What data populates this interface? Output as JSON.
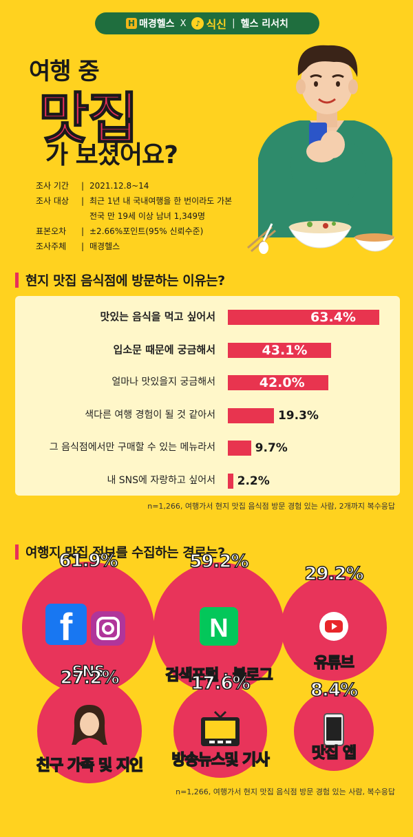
{
  "brand": {
    "maeil": "매경헬스",
    "x": "X",
    "sikshin": "식신",
    "divider": "|",
    "research": "헬스 리서치"
  },
  "hero": {
    "line1": "여행 중",
    "line2": "맛집",
    "line3": "가 보셨어요?"
  },
  "survey": [
    {
      "key": "조사 기간",
      "value": "2021.12.8~14"
    },
    {
      "key": "조사 대상",
      "value": "최근 1년 내 국내여행을 한 번이라도 가본",
      "value2": "전국 만 19세 이상 남녀 1,349명"
    },
    {
      "key": "표본오차",
      "value": "±2.66%포인트(95% 신뢰수준)"
    },
    {
      "key": "조사주체",
      "value": "매경헬스"
    }
  ],
  "section1": {
    "title": "현지 맛집 음식점에 방문하는 이유는?"
  },
  "section2": {
    "title": "여행지 맛집 정보를 수집하는 경로는?"
  },
  "chart_data": [
    {
      "type": "bar",
      "orientation": "horizontal",
      "categories": [
        "맛있는 음식을 먹고 싶어서",
        "입소문 때문에 궁금해서",
        "얼마나 맛있을지 궁금해서",
        "색다른 여행 경험이 될 것 같아서",
        "그 음식점에서만 구매할 수 있는 메뉴라서",
        "내 SNS에 자랑하고 싶어서"
      ],
      "values": [
        63.4,
        43.1,
        42.0,
        19.3,
        9.7,
        2.2
      ],
      "labels": [
        "63.4%",
        "43.1%",
        "42.0%",
        "19.3%",
        "9.7%",
        "2.2%"
      ],
      "note": "n=1,266, 여행가서 현지 맛집 음식점 방문 경험 있는 사람, 2개까지 복수응답",
      "color": "#E8344F"
    },
    {
      "type": "bubble",
      "categories": [
        "SNS",
        "검색포털 · 블로그",
        "유튜브",
        "친구 가족 및 지인",
        "방송뉴스및 기사",
        "맛집 앱"
      ],
      "values": [
        61.9,
        59.2,
        29.2,
        27.2,
        17.6,
        8.4
      ],
      "labels": [
        "61.9%",
        "59.2%",
        "29.2%",
        "27.2%",
        "17.6%",
        "8.4%"
      ],
      "note": "n=1,266, 여행가서 현지 맛집 음식점 방문 경험 있는 사람, 복수응답",
      "color": "#E8345A"
    }
  ],
  "icons": [
    "facebook-icon",
    "instagram-icon",
    "naver-icon",
    "youtube-icon",
    "person-icon",
    "tv-icon",
    "phone-icon"
  ]
}
